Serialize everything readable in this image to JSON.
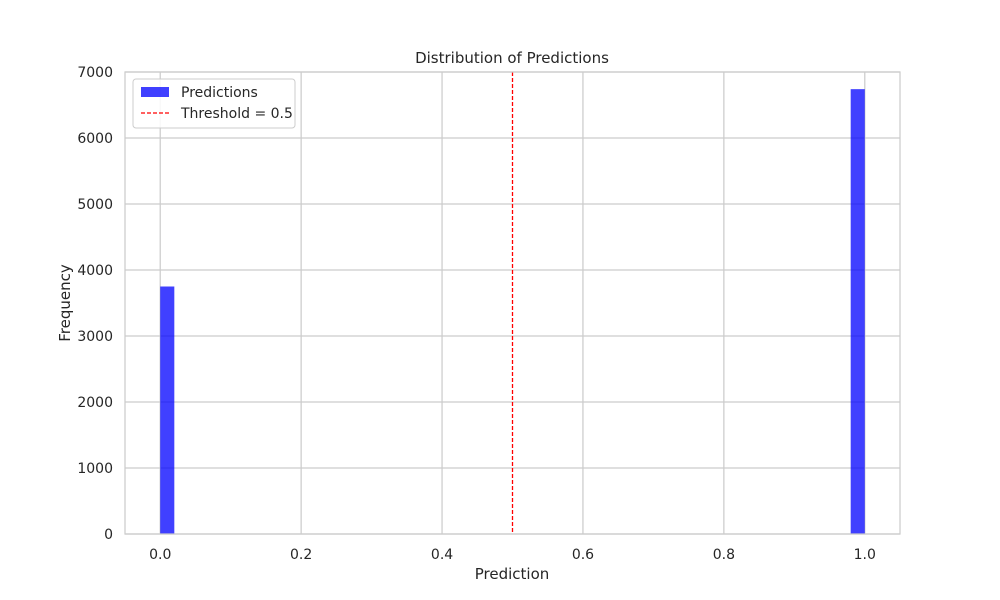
{
  "chart_data": {
    "type": "bar",
    "title": "Distribution of Predictions",
    "xlabel": "Prediction",
    "ylabel": "Frequency",
    "xlim": [
      -0.05,
      1.05
    ],
    "ylim": [
      0,
      7000
    ],
    "xticks": [
      0.0,
      0.2,
      0.4,
      0.6,
      0.8,
      1.0
    ],
    "xtick_labels": [
      "0.0",
      "0.2",
      "0.4",
      "0.6",
      "0.8",
      "1.0"
    ],
    "yticks": [
      0,
      1000,
      2000,
      3000,
      4000,
      5000,
      6000,
      7000
    ],
    "ytick_labels": [
      "0",
      "1000",
      "2000",
      "3000",
      "4000",
      "5000",
      "6000",
      "7000"
    ],
    "grid": true,
    "legend_position": "top-left",
    "series": [
      {
        "name": "Predictions",
        "type": "histogram",
        "color": "#0000ff",
        "bins": [
          {
            "x0": 0.0,
            "x1": 0.02,
            "value": 3750
          },
          {
            "x0": 0.98,
            "x1": 1.0,
            "value": 6740
          }
        ]
      }
    ],
    "threshold": {
      "label": "Threshold = 0.5",
      "value": 0.5,
      "color": "#ff0000",
      "style": "dashed"
    }
  }
}
